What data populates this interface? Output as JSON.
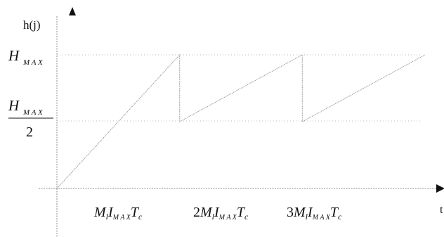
{
  "y_axis_label": "h(j)",
  "x_axis_label": "t",
  "y_ticks": {
    "hmax": {
      "main": "H",
      "sub": "M A X"
    },
    "half_hmax": {
      "main": "H",
      "sub": "M A X",
      "denominator": "2"
    }
  },
  "x_ticks": [
    {
      "coef": "",
      "m": "M",
      "l": "l",
      "i": "I",
      "sub": "M A X",
      "t": "T",
      "c": "c"
    },
    {
      "coef": "2",
      "m": "M",
      "l": "l",
      "i": "I",
      "sub": "M A X",
      "t": "T",
      "c": "c"
    },
    {
      "coef": "3",
      "m": "M",
      "l": "l",
      "i": "I",
      "sub": "M A X",
      "t": "T",
      "c": "c"
    }
  ],
  "chart_data": {
    "type": "line",
    "title": "",
    "xlabel": "t",
    "ylabel": "h(j)",
    "series": [
      {
        "x": [
          0,
          1,
          1,
          2,
          2,
          3
        ],
        "y": [
          0,
          1,
          0.5,
          1,
          0.5,
          1
        ]
      }
    ],
    "x_ticks": [
      "M_l I_MAX T_c",
      "2M_l I_MAX T_c",
      "3M_l I_MAX T_c"
    ],
    "y_ticks": [
      "H_MAX / 2",
      "H_MAX"
    ],
    "xlim": [
      0,
      3
    ],
    "ylim": [
      0,
      1
    ]
  }
}
